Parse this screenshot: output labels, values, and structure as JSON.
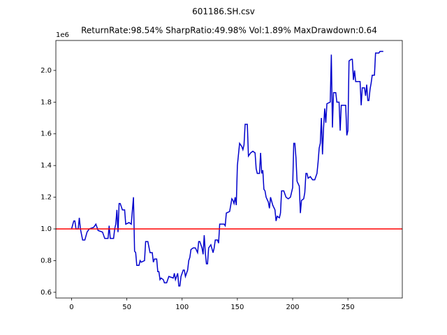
{
  "chart_data": {
    "type": "line",
    "suptitle": "601186.SH.csv",
    "title": "ReturnRate:98.54% SharpRatio:49.98% Vol:1.89% MaxDrawdown:0.64",
    "offset_text": "1e6",
    "x": [
      0,
      2,
      3,
      4,
      6,
      7,
      8,
      10,
      12,
      14,
      16,
      20,
      22,
      24,
      28,
      30,
      33,
      34,
      35,
      38,
      39,
      40,
      41,
      42,
      43,
      44,
      46,
      48,
      49,
      52,
      54,
      56,
      57,
      58,
      59,
      61,
      62,
      63,
      66,
      67,
      69,
      71,
      73,
      74,
      75,
      77,
      78,
      79,
      80,
      81,
      83,
      84,
      86,
      88,
      92,
      93,
      94,
      96,
      97,
      98,
      99,
      101,
      102,
      103,
      105,
      106,
      107,
      108,
      110,
      112,
      114,
      115,
      116,
      118,
      119,
      120,
      121,
      122,
      123,
      124,
      126,
      128,
      129,
      130,
      132,
      133,
      134,
      138,
      139,
      140,
      143,
      145,
      146,
      147,
      148,
      149,
      150,
      152,
      154,
      155,
      156,
      157,
      159,
      160,
      162,
      164,
      166,
      167,
      168,
      170,
      171,
      172,
      173,
      174,
      175,
      176,
      178,
      179,
      180,
      182,
      184,
      185,
      186,
      188,
      189,
      190,
      192,
      194,
      196,
      198,
      200,
      201,
      202,
      203,
      204,
      206,
      207,
      208,
      210,
      211,
      212,
      213,
      214,
      216,
      218,
      220,
      222,
      223,
      224,
      225,
      226,
      227,
      228,
      229,
      230,
      231,
      234,
      235,
      236,
      237,
      239,
      240,
      242,
      243,
      244,
      248,
      249,
      250,
      251,
      253,
      254,
      255,
      256,
      257,
      261,
      262,
      263,
      265,
      266,
      267,
      268,
      269,
      270,
      271,
      272,
      274,
      275,
      278,
      279,
      282
    ],
    "series": [
      {
        "color": "#0000cc",
        "values": [
          1.0,
          1.05,
          1.05,
          1.0,
          1.0,
          1.07,
          1.0,
          0.93,
          0.93,
          0.98,
          1.0,
          1.01,
          1.03,
          0.99,
          0.98,
          0.94,
          0.94,
          1.02,
          0.94,
          0.94,
          1.0,
          1.03,
          1.12,
          0.98,
          1.16,
          1.16,
          1.12,
          1.12,
          1.03,
          1.04,
          1.03,
          1.2,
          0.86,
          0.85,
          0.77,
          0.77,
          0.8,
          0.79,
          0.8,
          0.92,
          0.92,
          0.85,
          0.85,
          0.79,
          0.81,
          0.81,
          0.73,
          0.73,
          0.68,
          0.69,
          0.68,
          0.66,
          0.66,
          0.7,
          0.69,
          0.72,
          0.68,
          0.72,
          0.64,
          0.64,
          0.7,
          0.74,
          0.74,
          0.7,
          0.74,
          0.8,
          0.82,
          0.87,
          0.88,
          0.88,
          0.85,
          0.92,
          0.92,
          0.88,
          0.84,
          0.96,
          0.85,
          0.78,
          0.78,
          0.88,
          0.9,
          0.85,
          0.88,
          0.93,
          0.93,
          0.91,
          1.03,
          1.03,
          1.02,
          1.1,
          1.11,
          1.19,
          1.18,
          1.16,
          1.2,
          1.15,
          1.4,
          1.54,
          1.52,
          1.5,
          1.53,
          1.66,
          1.66,
          1.46,
          1.48,
          1.49,
          1.48,
          1.38,
          1.35,
          1.35,
          1.48,
          1.35,
          1.37,
          1.25,
          1.24,
          1.2,
          1.17,
          1.13,
          1.2,
          1.15,
          1.12,
          1.05,
          1.08,
          1.07,
          1.1,
          1.24,
          1.24,
          1.2,
          1.19,
          1.2,
          1.26,
          1.54,
          1.54,
          1.45,
          1.3,
          1.27,
          1.1,
          1.18,
          1.19,
          1.23,
          1.35,
          1.35,
          1.32,
          1.33,
          1.31,
          1.31,
          1.35,
          1.42,
          1.51,
          1.54,
          1.7,
          1.47,
          1.64,
          1.76,
          1.67,
          1.79,
          1.8,
          2.1,
          1.64,
          1.86,
          1.86,
          1.8,
          1.8,
          1.62,
          1.78,
          1.78,
          1.59,
          1.62,
          2.06,
          2.07,
          2.07,
          1.94,
          2.0,
          1.93,
          1.93,
          1.78,
          1.89,
          1.89,
          1.84,
          1.91,
          1.81,
          1.81,
          1.88,
          1.92,
          1.97,
          1.97,
          2.11,
          2.11,
          2.12,
          2.12
        ]
      }
    ],
    "hline": {
      "value": 1,
      "color": "#ff0000"
    },
    "xlim": [
      -14.2,
      299.2
    ],
    "ylim": [
      0.564,
      2.189
    ],
    "xticks": [
      0,
      50,
      100,
      150,
      200,
      250
    ],
    "yticks": [
      0.6,
      0.8,
      {
        "value": 1,
        "label": "1.0"
      },
      1.2,
      1.4,
      1.6,
      1.8,
      {
        "value": 2,
        "label": "2.0"
      }
    ],
    "grid": false
  }
}
